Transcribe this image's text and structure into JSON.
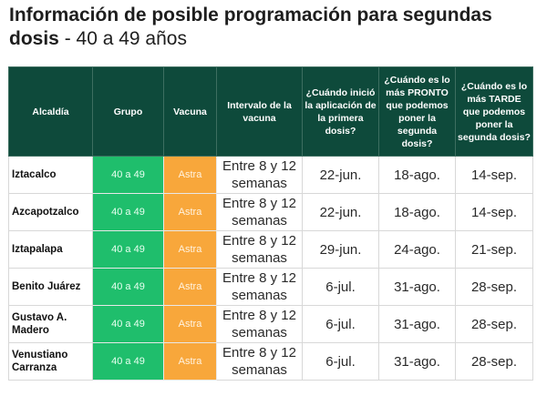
{
  "title": {
    "main": "Información de posible programación para segundas dosis",
    "sub": " - 40 a 49 años"
  },
  "headers": [
    "Alcaldía",
    "Grupo",
    "Vacuna",
    "Intervalo de la vacuna",
    "¿Cuándo inició la aplicación de la primera dosis?",
    "¿Cuándo es lo más PRONTO que podemos poner la segunda dosis?",
    "¿Cuándo es lo más TARDE que podemos poner la segunda dosis?"
  ],
  "rows": [
    [
      "Iztacalco",
      "40 a 49",
      "Astra",
      "Entre 8 y 12 semanas",
      "22-jun.",
      "18-ago.",
      "14-sep."
    ],
    [
      "Azcapotzalco",
      "40 a 49",
      "Astra",
      "Entre 8 y 12 semanas",
      "22-jun.",
      "18-ago.",
      "14-sep."
    ],
    [
      "Iztapalapa",
      "40 a 49",
      "Astra",
      "Entre 8 y 12 semanas",
      "29-jun.",
      "24-ago.",
      "21-sep."
    ],
    [
      "Benito Juárez",
      "40 a 49",
      "Astra",
      "Entre 8 y 12 semanas",
      "6-jul.",
      "31-ago.",
      "28-sep."
    ],
    [
      "Gustavo A. Madero",
      "40 a 49",
      "Astra",
      "Entre 8 y 12 semanas",
      "6-jul.",
      "31-ago.",
      "28-sep."
    ],
    [
      "Venustiano Carranza",
      "40 a 49",
      "Astra",
      "Entre 8 y 12 semanas",
      "6-jul.",
      "31-ago.",
      "28-sep."
    ]
  ],
  "colors": {
    "header": "#0e4a3b",
    "group": "#1fbe6c",
    "vaccine": "#f8a73b"
  }
}
